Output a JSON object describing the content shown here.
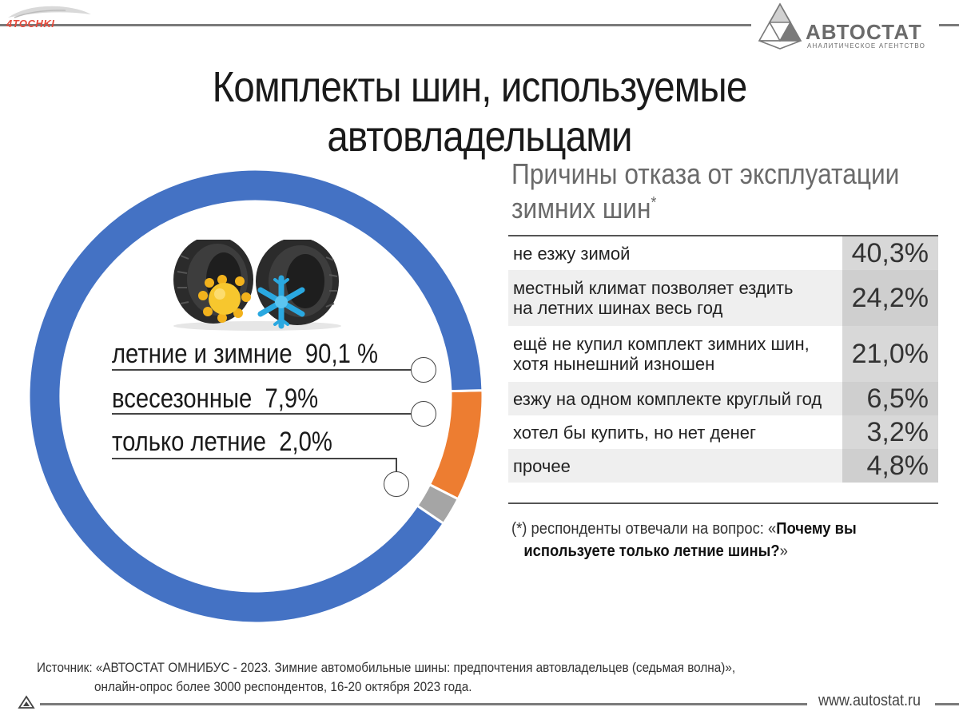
{
  "header": {
    "left_logo_text": "4TOCHKI",
    "right_logo_name": "АВТОСТАТ",
    "right_logo_sub": "АНАЛИТИЧЕСКОЕ АГЕНТСТВО",
    "title": "Комплекты шин, используемые автовладельцами"
  },
  "chart_data": [
    {
      "type": "pie",
      "subtype": "donut",
      "slices": [
        {
          "label": "летние и зимние",
          "value": 90.1,
          "value_label": "90,1 %",
          "color": "#4472c4"
        },
        {
          "label": "всесезонные",
          "value": 7.9,
          "value_label": "7,9%",
          "color": "#ed7d31"
        },
        {
          "label": "только летние",
          "value": 2.0,
          "value_label": "2,0%",
          "color": "#a5a5a5"
        }
      ]
    },
    {
      "type": "table",
      "title": "Причины отказа от эксплуатации зимних шин",
      "title_line1": "Причины отказа от эксплуатации",
      "title_line2": "зимних шин",
      "title_mark": "*",
      "rows": [
        {
          "line1": "не езжу зимой",
          "line2": "",
          "value": 40.3,
          "value_label": "40,3%"
        },
        {
          "line1": "местный климат позволяет ездить",
          "line2": "на летних шинах весь год",
          "value": 24.2,
          "value_label": "24,2%"
        },
        {
          "line1": "ещё не купил комплект зимних шин,",
          "line2": "хотя нынешний изношен",
          "value": 21.0,
          "value_label": "21,0%"
        },
        {
          "line1": "езжу на одном комплекте круглый год",
          "line2": "",
          "value": 6.5,
          "value_label": "6,5%"
        },
        {
          "line1": "хотел бы купить, но нет денег",
          "line2": "",
          "value": 3.2,
          "value_label": "3,2%"
        },
        {
          "line1": "прочее",
          "line2": "",
          "value": 4.8,
          "value_label": "4,8%"
        }
      ]
    }
  ],
  "footnote": {
    "prefix": "(*) респонденты отвечали на вопрос: «",
    "bold1": "Почему вы",
    "bold2": "используете только летние шины?",
    "suffix": "»"
  },
  "source": {
    "line1": "Источник: «АВТОСТАТ ОМНИБУС - 2023. Зимние автомобильные шины: предпочтения автовладельцев (седьмая волна)»,",
    "line2": "онлайн-опрос более 3000 респондентов, 16-20 октября 2023 года."
  },
  "footer": {
    "site": "www.autostat.ru"
  },
  "icons": [
    "tires-illustration",
    "sun-icon",
    "snowflake-icon"
  ]
}
